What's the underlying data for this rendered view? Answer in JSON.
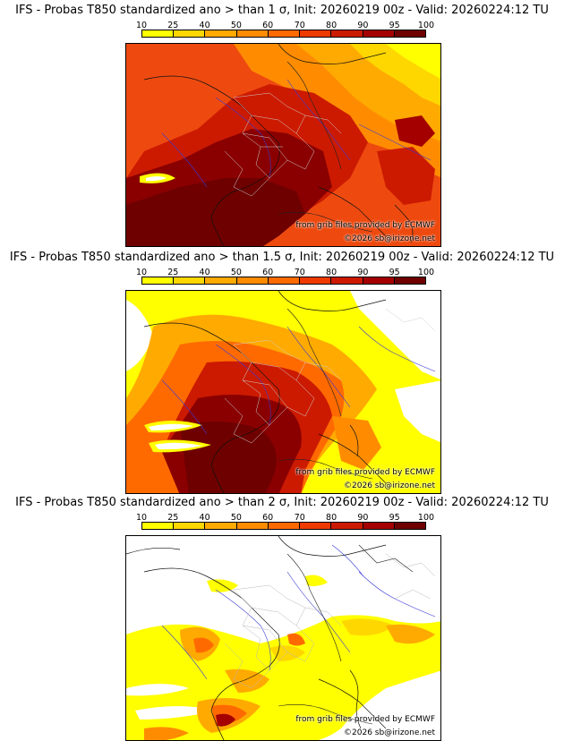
{
  "colorbar": {
    "levels": [
      "10",
      "25",
      "40",
      "50",
      "60",
      "70",
      "80",
      "90",
      "95",
      "100"
    ],
    "colors": [
      "#ffff00",
      "#ffd700",
      "#ffaa00",
      "#ff8c00",
      "#ff6a00",
      "#ee3a00",
      "#cc1a00",
      "#a40000",
      "#6e0000"
    ]
  },
  "panels": [
    {
      "title": "IFS - Probas T850  standardized ano > than 1 σ, Init: 20260219 00z - Valid: 20260224:12 TU",
      "credit_source": "from grib files provided by ECMWF",
      "credit_copyright": "©2026 sb@irizone.net"
    },
    {
      "title": "IFS - Probas T850  standardized ano > than 1.5 σ, Init: 20260219 00z - Valid: 20260224:12 TU",
      "credit_source": "from grib files provided by ECMWF",
      "credit_copyright": "©2026 sb@irizone.net"
    },
    {
      "title": "IFS - Probas T850  standardized ano > than 2 σ, Init: 20260219 00z - Valid: 20260224:12 TU",
      "credit_source": "from grib files provided by ECMWF",
      "credit_copyright": "©2026 sb@irizone.net"
    }
  ]
}
